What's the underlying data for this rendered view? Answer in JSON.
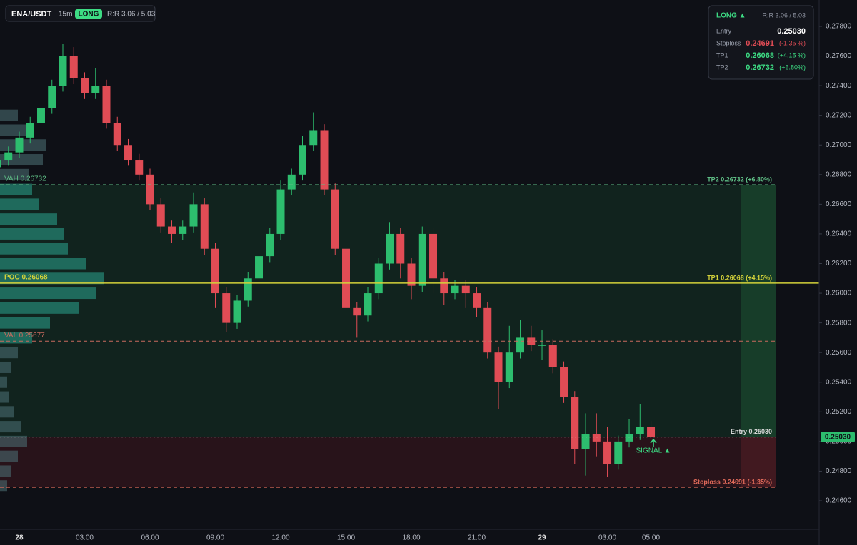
{
  "chart_data": {
    "type": "candlestick",
    "header": {
      "symbol": "ENA/USDT",
      "interval": "15m",
      "side": "LONG",
      "rr": "R:R 3.06 / 5.03"
    },
    "info_panel": {
      "side": "LONG ▲",
      "rr": "R:R 3.06 / 5.03",
      "rows": [
        {
          "label": "Entry",
          "price": "0.25030"
        },
        {
          "label": "Stoploss",
          "price": "0.24691",
          "change": "(-1.35 %)"
        },
        {
          "label": "TP1",
          "price": "0.26068",
          "change": "(+4.15 %)"
        },
        {
          "label": "TP2",
          "price": "0.26732",
          "change": "(+6.80%)"
        }
      ]
    },
    "x": [
      -1,
      -0.5,
      0,
      0.5,
      1,
      1.5,
      2,
      2.5,
      3,
      3.5,
      4,
      4.5,
      5,
      5.5,
      6,
      6.5,
      7,
      7.5,
      8,
      8.5,
      9,
      9.5,
      10,
      10.5,
      11,
      11.5,
      12,
      12.5,
      13,
      13.5,
      14,
      14.5,
      15,
      15.5,
      16,
      16.5,
      17,
      17.5,
      18,
      18.5,
      19,
      19.5,
      20,
      20.5,
      21,
      21.5,
      22,
      22.5,
      23,
      23.5,
      24,
      24.5,
      25,
      25.5,
      26,
      26.5,
      27,
      27.5,
      28,
      28.5,
      29
    ],
    "open": [
      0.2685,
      0.269,
      0.2695,
      0.2705,
      0.2715,
      0.2725,
      0.274,
      0.276,
      0.2745,
      0.2735,
      0.274,
      0.2715,
      0.27,
      0.269,
      0.268,
      0.266,
      0.2645,
      0.264,
      0.2645,
      0.266,
      0.263,
      0.26,
      0.258,
      0.2595,
      0.261,
      0.2625,
      0.264,
      0.267,
      0.268,
      0.27,
      0.271,
      0.267,
      0.263,
      0.259,
      0.2585,
      0.26,
      0.262,
      0.264,
      0.262,
      0.2605,
      0.264,
      0.261,
      0.26,
      0.2605,
      0.26,
      0.259,
      0.256,
      0.254,
      0.256,
      0.257,
      0.2565,
      0.2565,
      0.255,
      0.253,
      0.2495,
      0.2505,
      0.25,
      0.2485,
      0.25,
      0.2505,
      0.251
    ],
    "high": [
      0.2694,
      0.2699,
      0.2709,
      0.2719,
      0.2729,
      0.2744,
      0.2768,
      0.2766,
      0.2749,
      0.2752,
      0.2744,
      0.2719,
      0.2704,
      0.2694,
      0.2684,
      0.2664,
      0.2649,
      0.2649,
      0.2668,
      0.2664,
      0.2634,
      0.2604,
      0.2599,
      0.2614,
      0.2629,
      0.2644,
      0.2676,
      0.2684,
      0.2706,
      0.2722,
      0.2714,
      0.2674,
      0.2634,
      0.2594,
      0.2604,
      0.2624,
      0.2648,
      0.2644,
      0.2624,
      0.2645,
      0.2644,
      0.2614,
      0.2609,
      0.2609,
      0.2604,
      0.2594,
      0.2564,
      0.2578,
      0.2582,
      0.2578,
      0.2575,
      0.2569,
      0.2554,
      0.2534,
      0.2519,
      0.2519,
      0.251,
      0.2504,
      0.2515,
      0.2525,
      0.2514
    ],
    "low": [
      0.2681,
      0.2686,
      0.2691,
      0.2701,
      0.2711,
      0.2721,
      0.2736,
      0.2741,
      0.2731,
      0.2731,
      0.2711,
      0.2696,
      0.2686,
      0.2676,
      0.2656,
      0.2641,
      0.2634,
      0.2636,
      0.2641,
      0.2626,
      0.259,
      0.2574,
      0.2576,
      0.2591,
      0.2606,
      0.2621,
      0.2636,
      0.2666,
      0.2676,
      0.2696,
      0.2666,
      0.2626,
      0.2576,
      0.257,
      0.2581,
      0.2596,
      0.2616,
      0.261,
      0.2596,
      0.2601,
      0.26,
      0.2592,
      0.2596,
      0.259,
      0.2584,
      0.2556,
      0.2522,
      0.2536,
      0.2556,
      0.2561,
      0.2555,
      0.2546,
      0.2526,
      0.2485,
      0.2477,
      0.249,
      0.2476,
      0.2481,
      0.2496,
      0.2501,
      0.2499
    ],
    "close": [
      0.269,
      0.2695,
      0.2705,
      0.2715,
      0.2725,
      0.274,
      0.276,
      0.2745,
      0.2735,
      0.274,
      0.2715,
      0.27,
      0.269,
      0.268,
      0.266,
      0.2645,
      0.264,
      0.2645,
      0.266,
      0.263,
      0.26,
      0.258,
      0.2595,
      0.261,
      0.2625,
      0.264,
      0.267,
      0.268,
      0.27,
      0.271,
      0.267,
      0.263,
      0.259,
      0.2585,
      0.26,
      0.262,
      0.264,
      0.262,
      0.2605,
      0.264,
      0.261,
      0.26,
      0.2605,
      0.26,
      0.259,
      0.256,
      0.254,
      0.256,
      0.257,
      0.2565,
      0.2565,
      0.255,
      0.253,
      0.2495,
      0.2505,
      0.25,
      0.2485,
      0.25,
      0.2505,
      0.251,
      0.2503
    ],
    "up_color": "#2dbd6e",
    "down_color": "#e04c55",
    "xlim": [
      -0.885,
      36.72
    ],
    "xticks": [
      {
        "value": 0,
        "label": "28"
      },
      {
        "value": 3,
        "label": "03:00"
      },
      {
        "value": 6,
        "label": "06:00"
      },
      {
        "value": 9,
        "label": "09:00"
      },
      {
        "value": 12,
        "label": "12:00"
      },
      {
        "value": 15,
        "label": "15:00"
      },
      {
        "value": 18,
        "label": "18:00"
      },
      {
        "value": 21,
        "label": "21:00"
      },
      {
        "value": 24,
        "label": "29"
      },
      {
        "value": 27,
        "label": "03:00"
      },
      {
        "value": 29,
        "label": "05:00"
      }
    ],
    "ylim": [
      0.243017,
      0.27978
    ],
    "yticks": [
      {
        "value": 0.246,
        "label": "0.24600"
      },
      {
        "value": 0.248,
        "label": "0.24800"
      },
      {
        "value": 0.25,
        "label": "0.25000"
      },
      {
        "value": 0.252,
        "label": "0.25200"
      },
      {
        "value": 0.254,
        "label": "0.25400"
      },
      {
        "value": 0.256,
        "label": "0.25600"
      },
      {
        "value": 0.258,
        "label": "0.25800"
      },
      {
        "value": 0.26,
        "label": "0.26000"
      },
      {
        "value": 0.262,
        "label": "0.26200"
      },
      {
        "value": 0.264,
        "label": "0.26400"
      },
      {
        "value": 0.266,
        "label": "0.26600"
      },
      {
        "value": 0.268,
        "label": "0.26800"
      },
      {
        "value": 0.27,
        "label": "0.27000"
      },
      {
        "value": 0.272,
        "label": "0.27200"
      },
      {
        "value": 0.274,
        "label": "0.27400"
      },
      {
        "value": 0.276,
        "label": "0.27600"
      },
      {
        "value": 0.278,
        "label": "0.27800"
      }
    ],
    "grid": true,
    "levels": [
      {
        "value": 0.26732,
        "left_label": "VAH  0.26732",
        "label": "TP2 0.26732 (+6.80%)",
        "color": "#5fbf86",
        "style": "dashed"
      },
      {
        "value": 0.26068,
        "left_label": "POC  0.26068",
        "label": "TP1 0.26068 (+4.15%)",
        "color": "#d4d23a",
        "style": "solid"
      },
      {
        "value": 0.25677,
        "left_label": "VAL  0.25677",
        "color": "#c96a5e",
        "style": "dashed"
      },
      {
        "value": 0.2503,
        "label": "Entry 0.25030",
        "color": "#d8d8d8",
        "style": "dotted"
      },
      {
        "value": 0.24691,
        "label": "Stoploss 0.24691 (-1.35%)",
        "color": "#e06a5a",
        "style": "dashed"
      }
    ],
    "price_tag": {
      "value": 0.2503,
      "label": "0.25030"
    },
    "signal": "SIGNAL ▲",
    "volume_profile": {
      "prices": [
        0.247,
        0.248,
        0.249,
        0.25,
        0.251,
        0.252,
        0.253,
        0.254,
        0.255,
        0.256,
        0.257,
        0.258,
        0.259,
        0.26,
        0.261,
        0.262,
        0.263,
        0.264,
        0.265,
        0.266,
        0.267,
        0.268,
        0.269,
        0.27,
        0.271,
        0.272
      ],
      "values": [
        10,
        15,
        25,
        38,
        30,
        20,
        12,
        10,
        15,
        25,
        45,
        70,
        110,
        135,
        145,
        120,
        95,
        90,
        80,
        55,
        45,
        40,
        60,
        65,
        45,
        25
      ]
    }
  }
}
